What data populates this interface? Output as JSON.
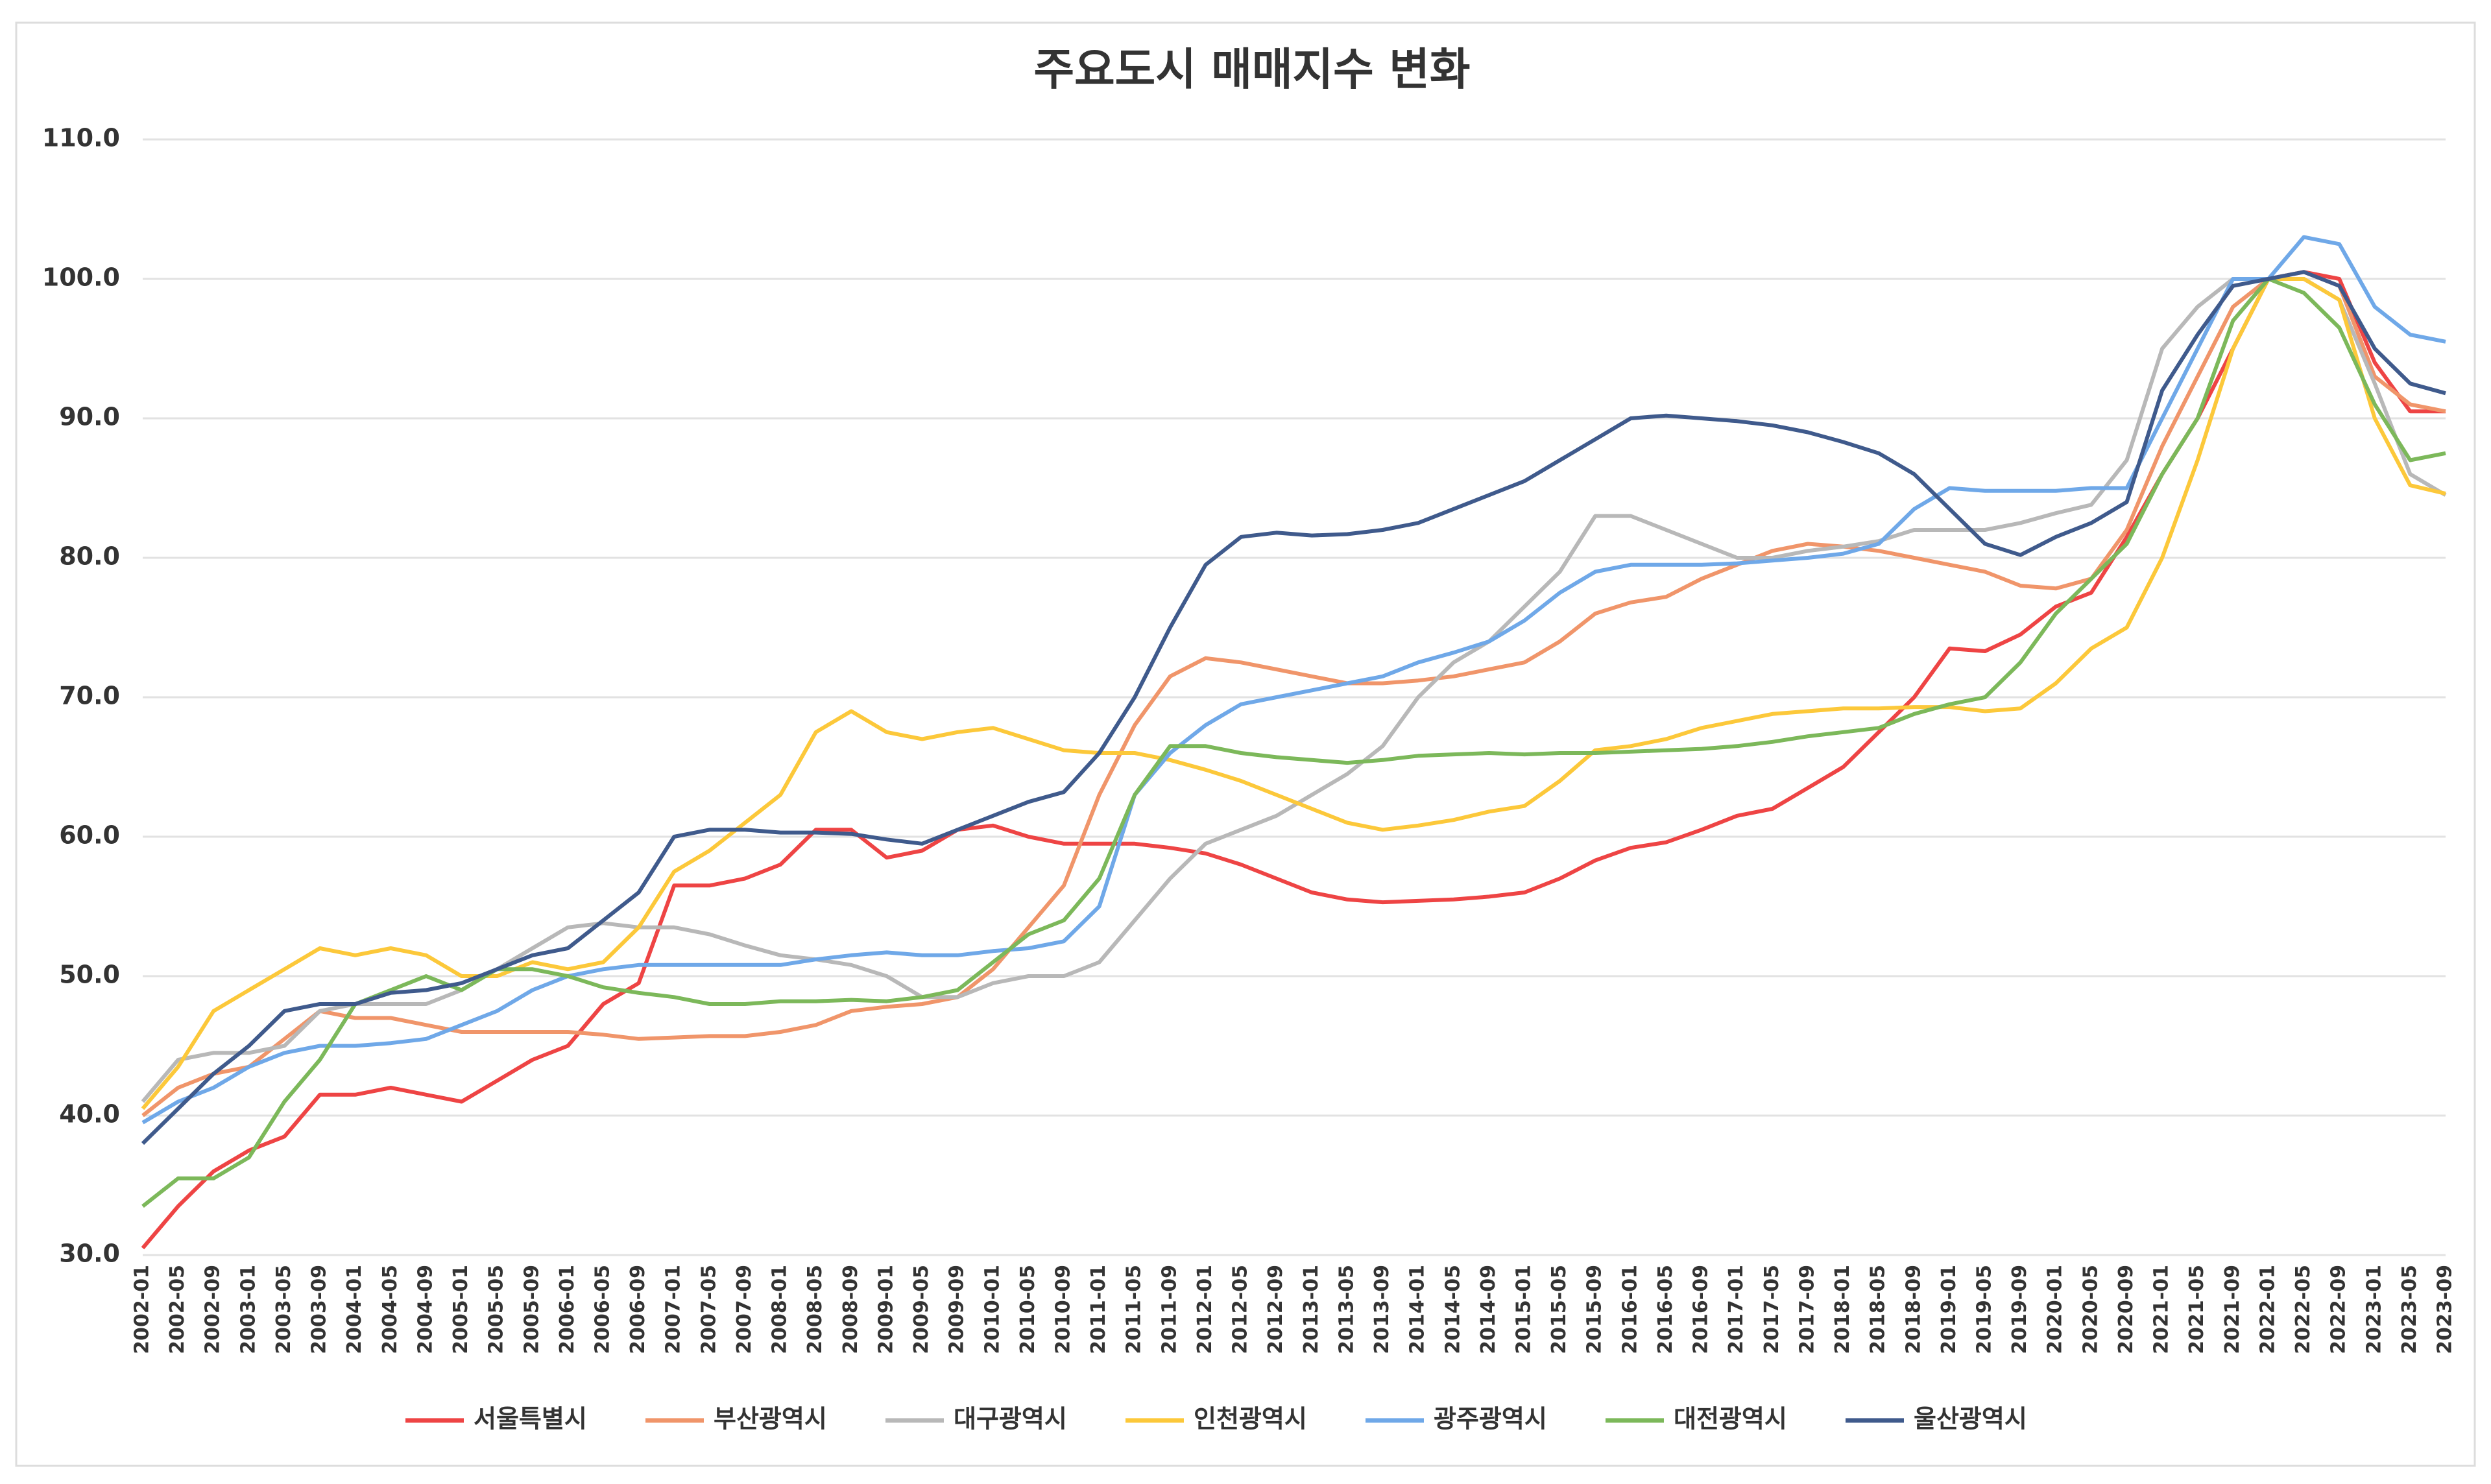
{
  "chart_data": {
    "type": "line",
    "title": "주요도시 매매지수 변화",
    "categories": [
      "2002-01",
      "2002-05",
      "2002-09",
      "2003-01",
      "2003-05",
      "2003-09",
      "2004-01",
      "2004-05",
      "2004-09",
      "2005-01",
      "2005-05",
      "2005-09",
      "2006-01",
      "2006-05",
      "2006-09",
      "2007-01",
      "2007-05",
      "2007-09",
      "2008-01",
      "2008-05",
      "2008-09",
      "2009-01",
      "2009-05",
      "2009-09",
      "2010-01",
      "2010-05",
      "2010-09",
      "2011-01",
      "2011-05",
      "2011-09",
      "2012-01",
      "2012-05",
      "2012-09",
      "2013-01",
      "2013-05",
      "2013-09",
      "2014-01",
      "2014-05",
      "2014-09",
      "2015-01",
      "2015-05",
      "2015-09",
      "2016-01",
      "2016-05",
      "2016-09",
      "2017-01",
      "2017-05",
      "2017-09",
      "2018-01",
      "2018-05",
      "2018-09",
      "2019-01",
      "2019-05",
      "2019-09",
      "2020-01",
      "2020-05",
      "2020-09",
      "2021-01",
      "2021-05",
      "2021-09",
      "2022-01",
      "2022-05",
      "2022-09",
      "2023-01",
      "2023-05",
      "2023-09"
    ],
    "series": [
      {
        "name": "서울특별시",
        "color": "#ee4444",
        "values": [
          30.5,
          33.5,
          36,
          37.5,
          38.5,
          41.5,
          41.5,
          42,
          41.5,
          41,
          42.5,
          44,
          45,
          48,
          49.5,
          56.5,
          56.5,
          57,
          58,
          60.5,
          60.5,
          58.5,
          59,
          60.5,
          60.8,
          60,
          59.5,
          59.5,
          59.5,
          59.2,
          58.8,
          58,
          57,
          56,
          55.5,
          55.3,
          55.4,
          55.5,
          55.7,
          56,
          57,
          58.3,
          59.2,
          59.6,
          60.5,
          61.5,
          62,
          63.5,
          65,
          67.5,
          70,
          73.5,
          73.3,
          74.5,
          76.5,
          77.5,
          81.5,
          86,
          90,
          95,
          100,
          100.5,
          100,
          94,
          90.5,
          90.5
        ]
      },
      {
        "name": "부산광역시",
        "color": "#f0956a",
        "values": [
          40,
          42,
          43,
          43.5,
          45.5,
          47.5,
          47,
          47,
          46.5,
          46,
          46,
          46,
          46,
          45.8,
          45.5,
          45.6,
          45.7,
          45.7,
          46,
          46.5,
          47.5,
          47.8,
          48,
          48.5,
          50.5,
          53.5,
          56.5,
          63,
          68,
          71.5,
          72.8,
          72.5,
          72,
          71.5,
          71,
          71,
          71.2,
          71.5,
          72,
          72.5,
          74,
          76,
          76.8,
          77.2,
          78.5,
          79.5,
          80.5,
          81,
          80.8,
          80.5,
          80,
          79.5,
          79,
          78,
          77.8,
          78.5,
          82,
          88,
          93,
          98,
          100,
          100.5,
          99.5,
          93,
          91,
          90.5
        ]
      },
      {
        "name": "대구광역시",
        "color": "#b8b8b8",
        "values": [
          41,
          44,
          44.5,
          44.5,
          45,
          47.5,
          48,
          48,
          48,
          49,
          50.5,
          52,
          53.5,
          53.8,
          53.5,
          53.5,
          53,
          52.2,
          51.5,
          51.2,
          50.8,
          50,
          48.5,
          48.5,
          49.5,
          50,
          50,
          51,
          54,
          57,
          59.5,
          60.5,
          61.5,
          63,
          64.5,
          66.5,
          70,
          72.5,
          74,
          76.5,
          79,
          83,
          83,
          82,
          81,
          80,
          80,
          80.5,
          80.8,
          81.2,
          82,
          82,
          82,
          82.5,
          83.2,
          83.8,
          87,
          95,
          98,
          100,
          100,
          100,
          98.5,
          92.5,
          86,
          84.5
        ]
      },
      {
        "name": "인천광역시",
        "color": "#fcc83a",
        "values": [
          40.5,
          43.5,
          47.5,
          49,
          50.5,
          52,
          51.5,
          52,
          51.5,
          50,
          50,
          51,
          50.5,
          51,
          53.5,
          57.5,
          59,
          61,
          63,
          67.5,
          69,
          67.5,
          67,
          67.5,
          67.8,
          67,
          66.2,
          66,
          66,
          65.5,
          64.8,
          64,
          63,
          62,
          61,
          60.5,
          60.8,
          61.2,
          61.8,
          62.2,
          64,
          66.2,
          66.5,
          67,
          67.8,
          68.3,
          68.8,
          69,
          69.2,
          69.2,
          69.3,
          69.3,
          69,
          69.2,
          71,
          73.5,
          75,
          80,
          87,
          95,
          100,
          100,
          98.5,
          90,
          85.2,
          84.6
        ]
      },
      {
        "name": "광주광역시",
        "color": "#6fa8e8",
        "values": [
          39.5,
          41,
          42,
          43.5,
          44.5,
          45,
          45,
          45.2,
          45.5,
          46.5,
          47.5,
          49,
          50,
          50.5,
          50.8,
          50.8,
          50.8,
          50.8,
          50.8,
          51.2,
          51.5,
          51.7,
          51.5,
          51.5,
          51.8,
          52,
          52.5,
          55,
          63,
          66,
          68,
          69.5,
          70,
          70.5,
          71,
          71.5,
          72.5,
          73.2,
          74,
          75.5,
          77.5,
          79,
          79.5,
          79.5,
          79.5,
          79.6,
          79.8,
          80,
          80.3,
          81,
          83.5,
          85,
          84.8,
          84.8,
          84.8,
          85,
          85,
          90,
          95,
          100,
          100,
          103,
          102.5,
          98,
          96,
          95.5
        ]
      },
      {
        "name": "대전광역시",
        "color": "#7cb85a",
        "values": [
          33.5,
          35.5,
          35.5,
          37,
          41,
          44,
          48,
          49,
          50,
          49,
          50.5,
          50.5,
          50,
          49.2,
          48.8,
          48.5,
          48,
          48,
          48.2,
          48.2,
          48.3,
          48.2,
          48.5,
          49,
          51,
          53,
          54,
          57,
          63,
          66.5,
          66.5,
          66,
          65.7,
          65.5,
          65.3,
          65.5,
          65.8,
          65.9,
          66,
          65.9,
          66,
          66,
          66.1,
          66.2,
          66.3,
          66.5,
          66.8,
          67.2,
          67.5,
          67.8,
          68.8,
          69.5,
          70,
          72.5,
          76,
          78.5,
          81,
          86,
          90,
          97,
          100,
          99,
          96.5,
          91,
          87,
          87.5
        ]
      },
      {
        "name": "울산광역시",
        "color": "#3f5a8c",
        "values": [
          38,
          40.5,
          43,
          45,
          47.5,
          48,
          48,
          48.8,
          49,
          49.5,
          50.5,
          51.5,
          52,
          54,
          56,
          60,
          60.5,
          60.5,
          60.3,
          60.3,
          60.2,
          59.8,
          59.5,
          60.5,
          61.5,
          62.5,
          63.2,
          66,
          70,
          75,
          79.5,
          81.5,
          81.8,
          81.6,
          81.7,
          82,
          82.5,
          83.5,
          84.5,
          85.5,
          87,
          88.5,
          90,
          90.2,
          90,
          89.8,
          89.5,
          89,
          88.3,
          87.5,
          86,
          83.5,
          81,
          80.2,
          81.5,
          82.5,
          84,
          92,
          96,
          99.5,
          100,
          100.5,
          99.5,
          95,
          92.5,
          91.8
        ]
      }
    ],
    "ylim": [
      30,
      110
    ],
    "yticks": [
      {
        "value": 30,
        "label": "30.0"
      },
      {
        "value": 40,
        "label": "40.0"
      },
      {
        "value": 50,
        "label": "50.0"
      },
      {
        "value": 60,
        "label": "60.0"
      },
      {
        "value": 70,
        "label": "70.0"
      },
      {
        "value": 80,
        "label": "80.0"
      },
      {
        "value": 90,
        "label": "90.0"
      },
      {
        "value": 100,
        "label": "100.0"
      },
      {
        "value": 110,
        "label": "110.0"
      }
    ],
    "grid": true,
    "legend": "bottom"
  }
}
